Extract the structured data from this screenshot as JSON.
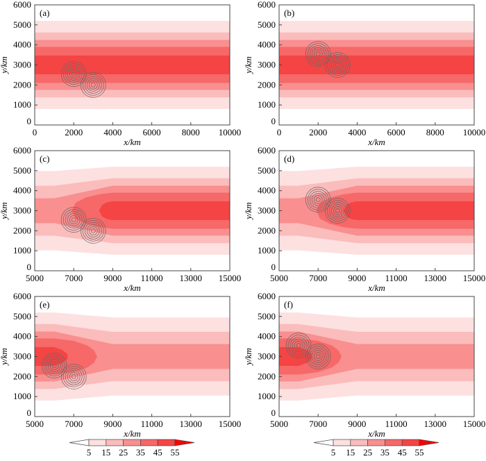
{
  "colorbar": {
    "levels": [
      "5",
      "15",
      "25",
      "35",
      "45",
      "55"
    ],
    "colors": [
      "#ffffff",
      "#fde0e0",
      "#fbbcbc",
      "#f98f8f",
      "#f76868",
      "#f54444",
      "#ff0000"
    ]
  },
  "chart_data": [
    {
      "type": "contour",
      "label": "(a)",
      "xlabel": "x/km",
      "ylabel": "y/km",
      "xlim": [
        0,
        10000
      ],
      "ylim": [
        0,
        6000
      ],
      "xticks": [
        "0",
        "2000",
        "4000",
        "6000",
        "8000",
        "10000"
      ],
      "yticks": [
        "0",
        "1000",
        "2000",
        "3000",
        "4000",
        "5000",
        "6000"
      ],
      "band_center_y": 3000,
      "bands": [
        [
          [
            0,
            2200
          ],
          [
            10000,
            2200
          ]
        ],
        [
          [
            0,
            1620
          ],
          [
            10000,
            1620
          ]
        ],
        [
          [
            0,
            1250
          ],
          [
            10000,
            1250
          ]
        ],
        [
          [
            0,
            900
          ],
          [
            10000,
            900
          ]
        ],
        [
          [
            0,
            470
          ],
          [
            10000,
            470
          ]
        ]
      ],
      "vortices": [
        [
          2000,
          2550
        ],
        [
          3000,
          2000
        ]
      ]
    },
    {
      "type": "contour",
      "label": "(b)",
      "xlabel": "x/km",
      "ylabel": "y/km",
      "xlim": [
        0,
        10000
      ],
      "ylim": [
        0,
        6000
      ],
      "xticks": [
        "0",
        "2000",
        "4000",
        "6000",
        "8000",
        "10000"
      ],
      "yticks": [
        "0",
        "1000",
        "2000",
        "3000",
        "4000",
        "5000",
        "6000"
      ],
      "band_center_y": 3000,
      "bands": [
        [
          [
            0,
            2200
          ],
          [
            10000,
            2200
          ]
        ],
        [
          [
            0,
            1620
          ],
          [
            10000,
            1620
          ]
        ],
        [
          [
            0,
            1250
          ],
          [
            10000,
            1250
          ]
        ],
        [
          [
            0,
            900
          ],
          [
            10000,
            900
          ]
        ],
        [
          [
            0,
            470
          ],
          [
            10000,
            470
          ]
        ]
      ],
      "vortices": [
        [
          2000,
          3550
        ],
        [
          3000,
          3000
        ]
      ]
    },
    {
      "type": "contour",
      "label": "(c)",
      "xlabel": "x/km",
      "ylabel": "y/km",
      "xlim": [
        5000,
        15000
      ],
      "ylim": [
        0,
        6000
      ],
      "xticks": [
        "5000",
        "7000",
        "9000",
        "11000",
        "13000",
        "15000"
      ],
      "yticks": [
        "0",
        "1000",
        "2000",
        "3000",
        "4000",
        "5000",
        "6000"
      ],
      "band_center_y": 3000,
      "bands": [
        [
          [
            5000,
            1980
          ],
          [
            6000,
            1980
          ],
          [
            9000,
            2200
          ],
          [
            15000,
            2200
          ]
        ],
        [
          [
            5000,
            1250
          ],
          [
            6000,
            1250
          ],
          [
            9000,
            1620
          ],
          [
            15000,
            1620
          ]
        ],
        [
          [
            5000,
            620
          ],
          [
            6000,
            620
          ],
          [
            9000,
            1250
          ],
          [
            15000,
            1250
          ]
        ],
        [
          [
            6900,
            0
          ],
          [
            7100,
            400
          ],
          [
            7600,
            650
          ],
          [
            8300,
            820
          ],
          [
            9000,
            900
          ],
          [
            15000,
            900
          ]
        ],
        [
          [
            8300,
            0
          ],
          [
            8450,
            280
          ],
          [
            8700,
            420
          ],
          [
            9000,
            470
          ],
          [
            15000,
            470
          ]
        ]
      ],
      "vortices": [
        [
          7000,
          2550
        ],
        [
          8000,
          2000
        ]
      ]
    },
    {
      "type": "contour",
      "label": "(d)",
      "xlabel": "x/km",
      "ylabel": "y/km",
      "xlim": [
        5000,
        15000
      ],
      "ylim": [
        0,
        6000
      ],
      "xticks": [
        "5000",
        "7000",
        "9000",
        "11000",
        "13000",
        "15000"
      ],
      "yticks": [
        "0",
        "1000",
        "2000",
        "3000",
        "4000",
        "5000",
        "6000"
      ],
      "band_center_y": 3000,
      "bands": [
        [
          [
            5000,
            1980
          ],
          [
            6000,
            1980
          ],
          [
            9000,
            2200
          ],
          [
            15000,
            2200
          ]
        ],
        [
          [
            5000,
            1250
          ],
          [
            6000,
            1250
          ],
          [
            9000,
            1620
          ],
          [
            15000,
            1620
          ]
        ],
        [
          [
            5000,
            620
          ],
          [
            6000,
            620
          ],
          [
            9000,
            1250
          ],
          [
            15000,
            1250
          ]
        ],
        [
          [
            6900,
            0
          ],
          [
            7100,
            400
          ],
          [
            7600,
            650
          ],
          [
            8300,
            820
          ],
          [
            9000,
            900
          ],
          [
            15000,
            900
          ]
        ],
        [
          [
            8300,
            0
          ],
          [
            8450,
            280
          ],
          [
            8700,
            420
          ],
          [
            9000,
            470
          ],
          [
            15000,
            470
          ]
        ]
      ],
      "vortices": [
        [
          7000,
          3550
        ],
        [
          8000,
          3000
        ]
      ]
    },
    {
      "type": "contour",
      "label": "(e)",
      "xlabel": "x/km",
      "ylabel": "y/km",
      "xlim": [
        5000,
        15000
      ],
      "ylim": [
        0,
        6000
      ],
      "xticks": [
        "5000",
        "7000",
        "9000",
        "11000",
        "13000",
        "15000"
      ],
      "yticks": [
        "0",
        "1000",
        "2000",
        "3000",
        "4000",
        "5000",
        "6000"
      ],
      "band_center_y": 3000,
      "bands": [
        [
          [
            5000,
            2200
          ],
          [
            6000,
            2200
          ],
          [
            9000,
            1950
          ],
          [
            15000,
            1950
          ]
        ],
        [
          [
            5000,
            1620
          ],
          [
            6000,
            1620
          ],
          [
            9000,
            1230
          ],
          [
            15000,
            1230
          ]
        ],
        [
          [
            5000,
            1250
          ],
          [
            6000,
            1250
          ],
          [
            9000,
            620
          ],
          [
            15000,
            620
          ]
        ],
        [
          [
            5000,
            900
          ],
          [
            6000,
            900
          ],
          [
            7000,
            780
          ],
          [
            7700,
            550
          ],
          [
            8050,
            300
          ],
          [
            8200,
            0
          ]
        ],
        [
          [
            5000,
            470
          ],
          [
            6000,
            470
          ],
          [
            6400,
            330
          ],
          [
            6650,
            150
          ],
          [
            6700,
            0
          ]
        ]
      ],
      "vortices": [
        [
          6000,
          2550
        ],
        [
          7000,
          2000
        ]
      ]
    },
    {
      "type": "contour",
      "label": "(f)",
      "xlabel": "x/km",
      "ylabel": "y/km",
      "xlim": [
        5000,
        15000
      ],
      "ylim": [
        0,
        6000
      ],
      "xticks": [
        "5000",
        "7000",
        "9000",
        "11000",
        "13000",
        "15000"
      ],
      "yticks": [
        "0",
        "1000",
        "2000",
        "3000",
        "4000",
        "5000",
        "6000"
      ],
      "band_center_y": 3000,
      "bands": [
        [
          [
            5000,
            2200
          ],
          [
            6000,
            2200
          ],
          [
            9000,
            1950
          ],
          [
            15000,
            1950
          ]
        ],
        [
          [
            5000,
            1620
          ],
          [
            6000,
            1620
          ],
          [
            9000,
            1230
          ],
          [
            15000,
            1230
          ]
        ],
        [
          [
            5000,
            1250
          ],
          [
            6000,
            1250
          ],
          [
            9000,
            620
          ],
          [
            15000,
            620
          ]
        ],
        [
          [
            5000,
            900
          ],
          [
            6000,
            900
          ],
          [
            7000,
            780
          ],
          [
            7700,
            550
          ],
          [
            8050,
            300
          ],
          [
            8200,
            0
          ]
        ],
        [
          [
            5000,
            470
          ],
          [
            6000,
            470
          ],
          [
            6400,
            330
          ],
          [
            6650,
            150
          ],
          [
            6700,
            0
          ]
        ]
      ],
      "vortices": [
        [
          6000,
          3550
        ],
        [
          7000,
          3000
        ]
      ]
    }
  ]
}
